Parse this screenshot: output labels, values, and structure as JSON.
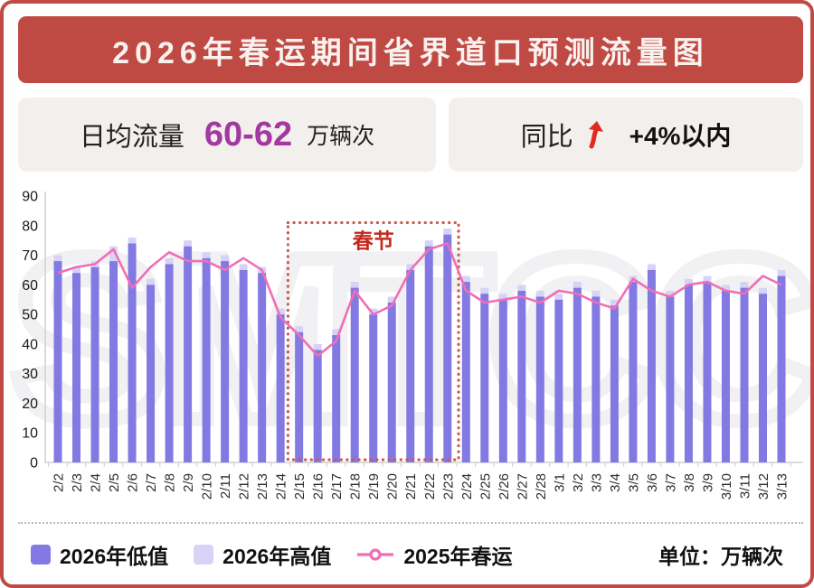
{
  "header": {
    "title": "2026年春运期间省界道口预测流量图"
  },
  "stats": {
    "daily": {
      "label": "日均流量",
      "value": "60-62",
      "unit": "万辆次",
      "value_color": "#a238a0"
    },
    "yoy": {
      "label": "同比",
      "arrow_icon": "up-arrow",
      "arrow_color": "#e02a1e",
      "value": "+4%以内"
    }
  },
  "chart_data": {
    "type": "bar",
    "title": "",
    "xlabel": "",
    "ylabel": "",
    "unit": "万辆次",
    "ylim": [
      0,
      90
    ],
    "y_ticks": [
      0,
      10,
      20,
      30,
      40,
      50,
      60,
      70,
      80,
      90
    ],
    "grid": false,
    "legend_position": "bottom",
    "categories": [
      "2/2",
      "2/3",
      "2/4",
      "2/5",
      "2/6",
      "2/7",
      "2/8",
      "2/9",
      "2/10",
      "2/11",
      "2/12",
      "2/13",
      "2/14",
      "2/15",
      "2/16",
      "2/17",
      "2/18",
      "2/19",
      "2/20",
      "2/21",
      "2/22",
      "2/23",
      "2/24",
      "2/25",
      "2/26",
      "2/27",
      "2/28",
      "3/1",
      "3/2",
      "3/3",
      "3/4",
      "3/5",
      "3/6",
      "3/7",
      "3/8",
      "3/9",
      "3/10",
      "3/11",
      "3/12",
      "3/13"
    ],
    "series": [
      {
        "name": "2026年低值",
        "type": "bar",
        "color": "#8279e2",
        "values": [
          68,
          64,
          66,
          68,
          74,
          60,
          67,
          73,
          69,
          68,
          65,
          64,
          50,
          44,
          38,
          43,
          59,
          50,
          54,
          65,
          73,
          77,
          61,
          57,
          55,
          58,
          56,
          55,
          59,
          56,
          53,
          61,
          65,
          56,
          60,
          61,
          58,
          59,
          57,
          63
        ]
      },
      {
        "name": "2026年高值",
        "type": "bar",
        "color": "#d7d3f7",
        "values": [
          70,
          66,
          68,
          73,
          76,
          62,
          69,
          75,
          71,
          70,
          67,
          66,
          52,
          46,
          40,
          45,
          61,
          52,
          56,
          67,
          75,
          79,
          63,
          59,
          57,
          60,
          58,
          57,
          61,
          58,
          55,
          63,
          67,
          58,
          62,
          63,
          60,
          61,
          59,
          65
        ]
      },
      {
        "name": "2025年春运",
        "type": "line",
        "color": "#f06eb5",
        "values": [
          64,
          66,
          67,
          72,
          59,
          66,
          71,
          68,
          68,
          65,
          69,
          65,
          49,
          43,
          36,
          41,
          58,
          50,
          53,
          65,
          72,
          74,
          58,
          54,
          55,
          56,
          54,
          58,
          57,
          54,
          52,
          62,
          58,
          56,
          60,
          61,
          58,
          57,
          63,
          60
        ]
      }
    ],
    "annotation": {
      "label": "春节",
      "from": "2/15",
      "to": "2/23",
      "label_color": "#c5281c",
      "box_color": "#cb5b4c"
    },
    "watermark": "SMTCC"
  },
  "legend": {
    "items": [
      {
        "label": "2026年低值",
        "swatch": "#8279e2",
        "marker": "square"
      },
      {
        "label": "2026年高值",
        "swatch": "#d7d3f7",
        "marker": "square"
      },
      {
        "label": "2025年春运",
        "swatch": "#f06eb5",
        "marker": "line-circle"
      }
    ],
    "unit_label": "单位：万辆次"
  }
}
